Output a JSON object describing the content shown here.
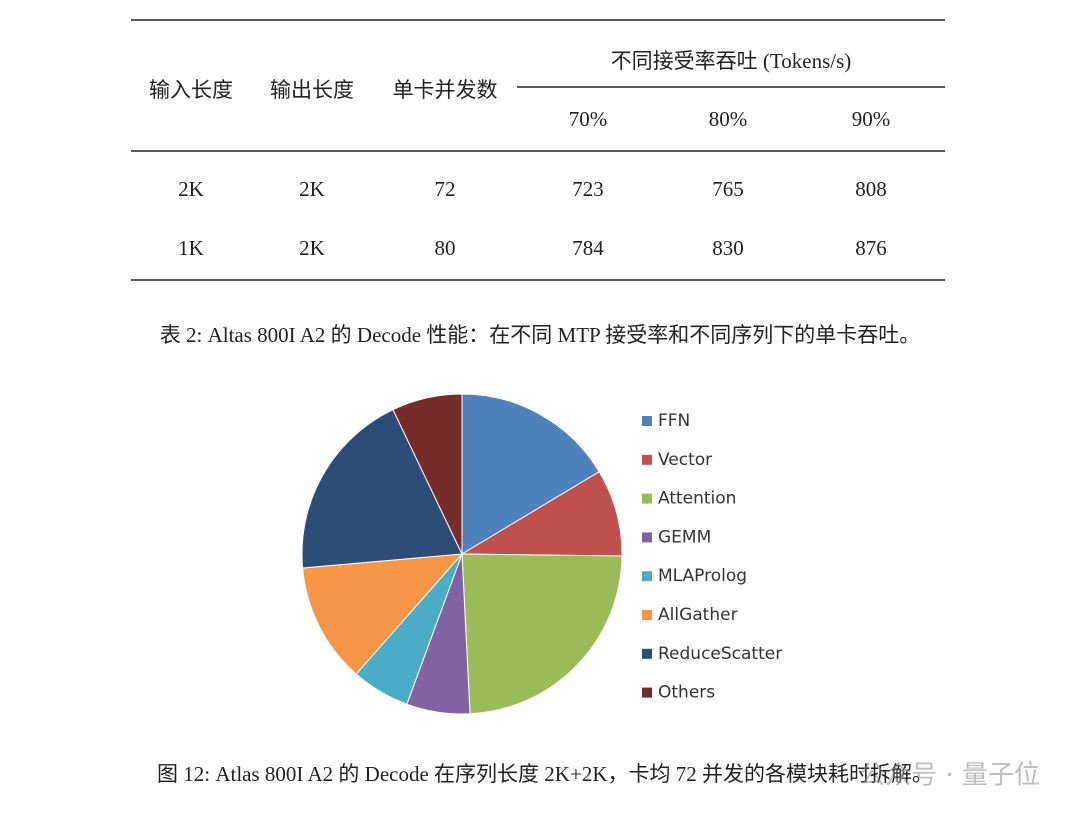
{
  "table": {
    "headers": [
      "输入长度",
      "输出长度",
      "单卡并发数"
    ],
    "group_header": "不同接受率吞吐 (Tokens/s)",
    "sub_headers": [
      "70%",
      "80%",
      "90%"
    ],
    "rows": [
      [
        "2K",
        "2K",
        "72",
        "723",
        "765",
        "808"
      ],
      [
        "1K",
        "2K",
        "80",
        "784",
        "830",
        "876"
      ]
    ],
    "caption": "表 2: Altas 800I A2 的 Decode 性能：在不同 MTP 接受率和不同序列下的单卡吞吐。"
  },
  "chart_data": {
    "type": "pie",
    "categories": [
      "FFN",
      "Vector",
      "Attention",
      "GEMM",
      "MLAProlog",
      "AllGather",
      "ReduceScatter",
      "Others"
    ],
    "values": [
      16.4,
      8.8,
      24.0,
      6.4,
      5.9,
      12.1,
      19.3,
      7.1
    ],
    "colors": [
      "#4f81bd",
      "#c0504d",
      "#9bbb59",
      "#8064a2",
      "#4bacc6",
      "#f79646",
      "#2c4d75",
      "#772c2a"
    ],
    "legend": "right"
  },
  "figure_caption": "图 12: Atlas 800I A2 的 Decode 在序列长度 2K+2K，卡均 72 并发的各模块耗时拆解。",
  "watermark": "公众号 · 量子位"
}
